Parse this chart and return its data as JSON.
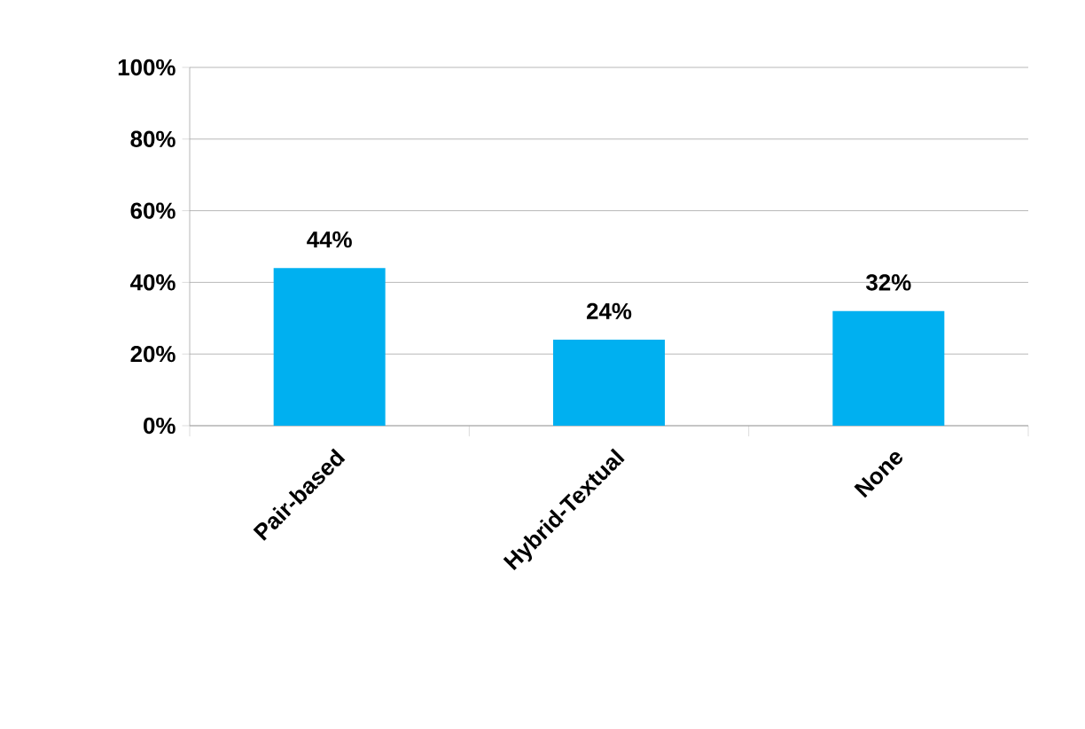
{
  "chart_data": {
    "type": "bar",
    "categories": [
      "Pair-based",
      "Hybrid-Textual",
      "None"
    ],
    "values": [
      44,
      24,
      32
    ],
    "value_labels": [
      "44%",
      "24%",
      "32%"
    ],
    "color": "#00b0f0",
    "ylim": [
      0,
      100
    ],
    "yticks": [
      {
        "value": 0,
        "label": "0%"
      },
      {
        "value": 20,
        "label": "20%"
      },
      {
        "value": 40,
        "label": "40%"
      },
      {
        "value": 60,
        "label": "60%"
      },
      {
        "value": 80,
        "label": "80%"
      },
      {
        "value": 100,
        "label": "100%"
      }
    ],
    "grid": "y"
  }
}
